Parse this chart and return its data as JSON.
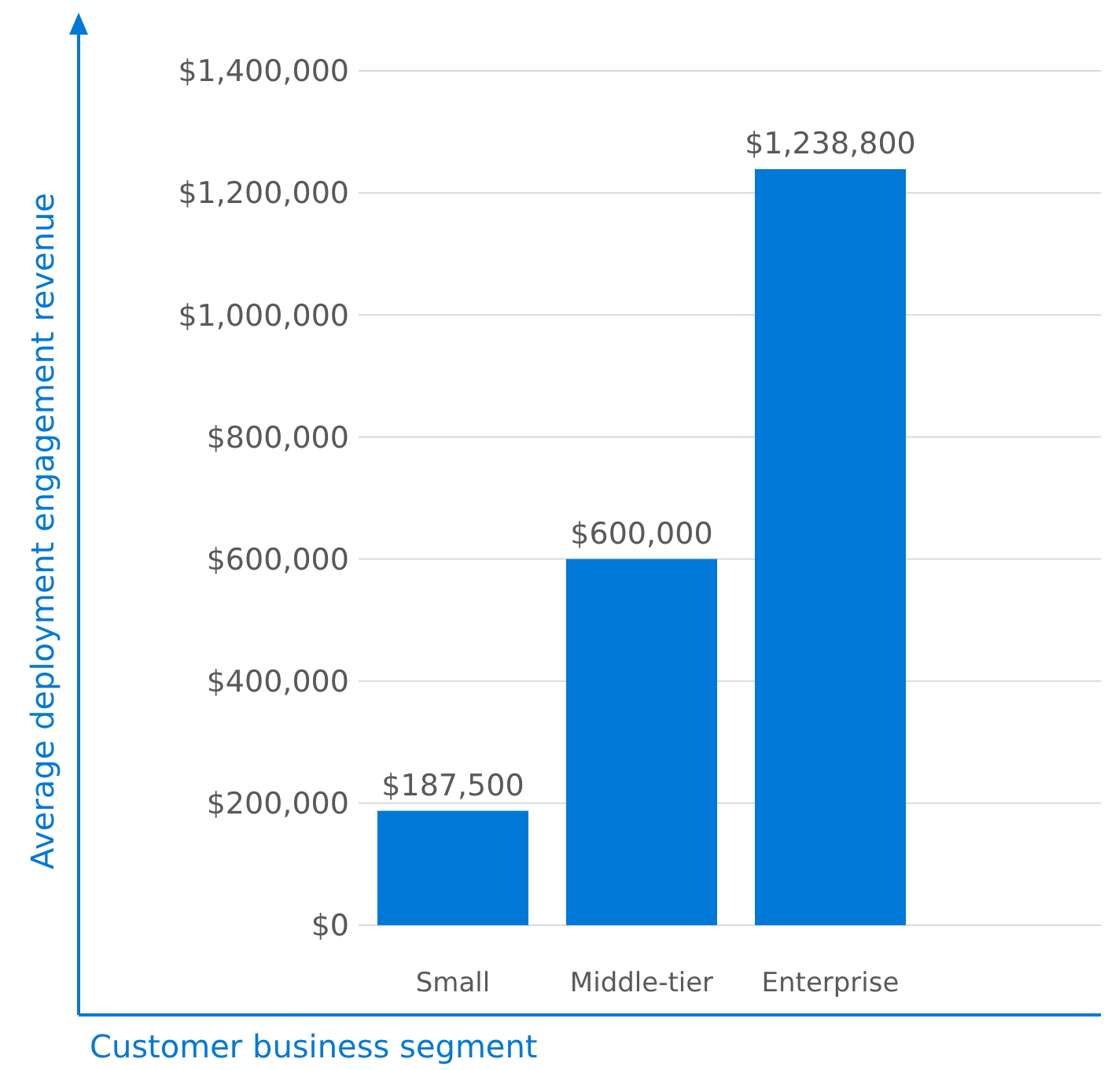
{
  "chart_data": {
    "type": "bar",
    "xlabel": "Customer business segment",
    "ylabel": "Average deployment engagement revenue",
    "categories": [
      "Small",
      "Middle-tier",
      "Enterprise"
    ],
    "values": [
      187500,
      600000,
      1238800
    ],
    "color": "#0078d7",
    "value_labels": [
      "$187,500",
      "$600,000",
      "$1,238,800"
    ],
    "ylim": [
      0,
      1400000
    ],
    "yticks": [
      {
        "value": 0,
        "label": "$0"
      },
      {
        "value": 200000,
        "label": "$200,000"
      },
      {
        "value": 400000,
        "label": "$400,000"
      },
      {
        "value": 600000,
        "label": "$600,000"
      },
      {
        "value": 800000,
        "label": "$800,000"
      },
      {
        "value": 1000000,
        "label": "$1,000,000"
      },
      {
        "value": 1200000,
        "label": "$1,200,000"
      },
      {
        "value": 1400000,
        "label": "$1,400,000"
      }
    ],
    "grid": "y"
  }
}
